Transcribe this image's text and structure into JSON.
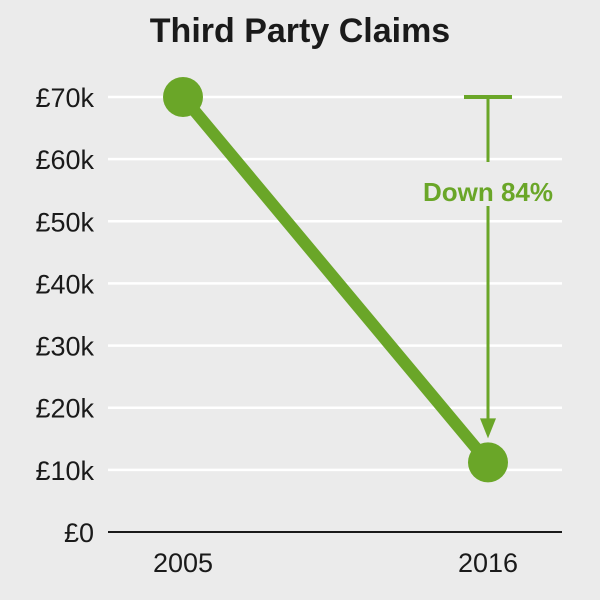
{
  "chart_data": {
    "type": "line",
    "title": "Third Party Claims",
    "xlabel": "",
    "ylabel": "",
    "categories": [
      "2005",
      "2016"
    ],
    "series": [
      {
        "values": [
          70000,
          11200
        ]
      }
    ],
    "ylim": [
      0,
      70000
    ],
    "y_ticks": [
      0,
      10000,
      20000,
      30000,
      40000,
      50000,
      60000,
      70000
    ],
    "y_tick_labels": [
      "£0",
      "£10k",
      "£20k",
      "£30k",
      "£40k",
      "£50k",
      "£60k",
      "£70k"
    ],
    "grid": true,
    "legend": "none",
    "annotation": {
      "text": "Down 84%",
      "from_value": 70000,
      "to_value": 11200
    },
    "colors": {
      "series": "#6aa628",
      "background": "#ebebeb",
      "grid": "#ffffff",
      "axis": "#1a1a1a",
      "text": "#1a1a1a"
    }
  }
}
